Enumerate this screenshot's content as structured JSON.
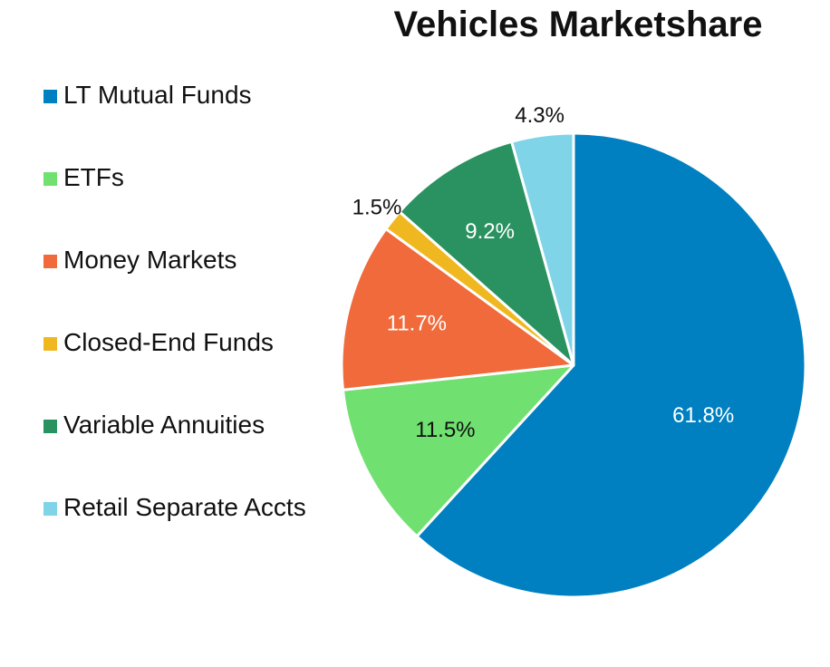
{
  "chart_data": {
    "type": "pie",
    "title": "Vehicles Marketshare",
    "legend_position": "left",
    "start_angle_deg": 0,
    "direction": "clockwise",
    "slices": [
      {
        "label": "LT Mutual Funds",
        "value": 61.8,
        "value_label": "61.8%",
        "color": "#0080C0",
        "label_color": "#ffffff",
        "label_placement": "inside"
      },
      {
        "label": "ETFs",
        "value": 11.5,
        "value_label": "11.5%",
        "color": "#70E070",
        "label_color": "#111111",
        "label_placement": "inside"
      },
      {
        "label": "Money Markets",
        "value": 11.7,
        "value_label": "11.7%",
        "color": "#F06A3C",
        "label_color": "#ffffff",
        "label_placement": "inside"
      },
      {
        "label": "Closed-End Funds",
        "value": 1.5,
        "value_label": "1.5%",
        "color": "#F0B820",
        "label_color": "#111111",
        "label_placement": "outside"
      },
      {
        "label": "Variable Annuities",
        "value": 9.2,
        "value_label": "9.2%",
        "color": "#2A9260",
        "label_color": "#ffffff",
        "label_placement": "inside"
      },
      {
        "label": "Retail Separate Accts",
        "value": 4.3,
        "value_label": "4.3%",
        "color": "#80D4E8",
        "label_color": "#111111",
        "label_placement": "outside"
      }
    ]
  }
}
